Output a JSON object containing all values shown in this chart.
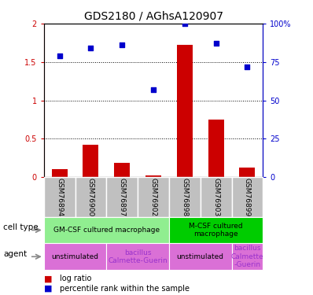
{
  "title": "GDS2180 / AGhsA120907",
  "samples": [
    "GSM76894",
    "GSM76900",
    "GSM76897",
    "GSM76902",
    "GSM76898",
    "GSM76903",
    "GSM76899"
  ],
  "log_ratio": [
    0.1,
    0.42,
    0.18,
    0.02,
    1.72,
    0.75,
    0.12
  ],
  "percentile_rank": [
    79,
    84,
    86,
    57,
    100,
    87,
    72
  ],
  "ylim_left": [
    0,
    2
  ],
  "ylim_right": [
    0,
    100
  ],
  "yticks_left": [
    0,
    0.5,
    1,
    1.5,
    2
  ],
  "yticks_right": [
    0,
    25,
    50,
    75,
    100
  ],
  "ytick_labels_left": [
    "0",
    "0.5",
    "1",
    "1.5",
    "2"
  ],
  "ytick_labels_right": [
    "0",
    "25",
    "50",
    "75",
    "100%"
  ],
  "bar_color": "#CC0000",
  "scatter_color": "#0000CC",
  "axis_left_color": "#CC0000",
  "axis_right_color": "#0000CC",
  "gsm_box_color": "#C0C0C0",
  "cell_light_green": "#90EE90",
  "cell_dark_green": "#00CC00",
  "agent_pink": "#DA70D6",
  "agent_text_purple": "#9932CC",
  "cell_groups": [
    {
      "label": "GM-CSF cultured macrophage",
      "start": 0,
      "end": 3,
      "color": "#90EE90"
    },
    {
      "label": "M-CSF cultured\nmacrophage",
      "start": 4,
      "end": 6,
      "color": "#00CC00"
    }
  ],
  "agent_groups": [
    {
      "label": "unstimulated",
      "start": 0,
      "end": 1,
      "color": "#DA70D6",
      "tcolor": "#000000"
    },
    {
      "label": "bacillus\nCalmette-Guerin",
      "start": 2,
      "end": 3,
      "color": "#DA70D6",
      "tcolor": "#9932CC"
    },
    {
      "label": "unstimulated",
      "start": 4,
      "end": 5,
      "color": "#DA70D6",
      "tcolor": "#000000"
    },
    {
      "label": "bacillus\nCalmette\n-Guerin",
      "start": 6,
      "end": 6,
      "color": "#DA70D6",
      "tcolor": "#9932CC"
    }
  ]
}
